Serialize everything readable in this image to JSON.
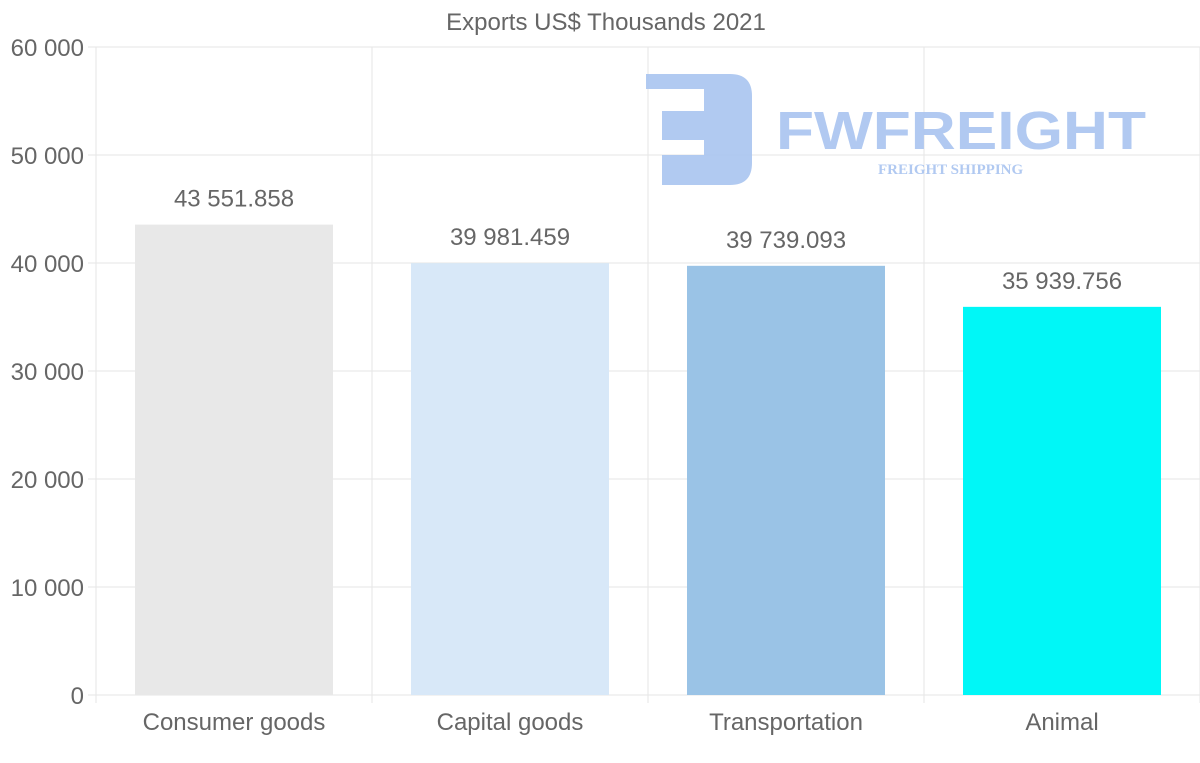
{
  "chart_data": {
    "type": "bar",
    "title": "Exports US$ Thousands 2021",
    "xlabel": "",
    "ylabel": "",
    "categories": [
      "Consumer goods",
      "Capital goods",
      "Transportation",
      "Animal"
    ],
    "values": [
      43551.858,
      39981.459,
      39739.093,
      35939.756
    ],
    "value_labels": [
      "43 551.858",
      "39 981.459",
      "39 739.093",
      "35 939.756"
    ],
    "colors": [
      "#e8e8e8",
      "#d8e8f8",
      "#9ac3e6",
      "#00f7f7"
    ],
    "ylim": [
      0,
      60000
    ],
    "yticks": [
      0,
      10000,
      20000,
      30000,
      40000,
      50000,
      60000
    ],
    "ytick_labels": [
      "0",
      "10 000",
      "20 000",
      "30 000",
      "40 000",
      "50 000",
      "60 000"
    ],
    "grid": true,
    "legend": "none"
  },
  "watermark": {
    "brand": "FWFREIGHT",
    "tagline": "FREIGHT SHIPPING",
    "color": "#a9c4f0"
  }
}
